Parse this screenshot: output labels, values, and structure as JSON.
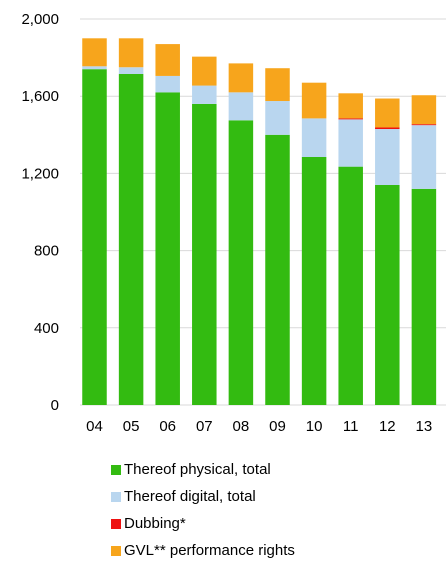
{
  "chart_data": {
    "type": "bar",
    "stacked": true,
    "categories": [
      "04",
      "05",
      "06",
      "07",
      "08",
      "09",
      "10",
      "11",
      "12",
      "13"
    ],
    "series": [
      {
        "name": "Thereof physical, total",
        "color": "#33bb11",
        "values": [
          1740,
          1715,
          1620,
          1560,
          1475,
          1400,
          1285,
          1235,
          1140,
          1120
        ]
      },
      {
        "name": "Thereof digital, total",
        "color": "#b9d6ef",
        "values": [
          15,
          35,
          85,
          95,
          145,
          175,
          200,
          245,
          290,
          330
        ]
      },
      {
        "name": "Dubbing*",
        "color": "#ee1111",
        "values": [
          0,
          0,
          0,
          0,
          0,
          0,
          0,
          5,
          8,
          5
        ]
      },
      {
        "name": "GVL** performance rights",
        "color": "#f7a51c",
        "values": [
          145,
          150,
          165,
          150,
          150,
          170,
          185,
          130,
          150,
          150
        ]
      }
    ],
    "yticks": [
      0,
      400,
      800,
      1200,
      1600,
      2000
    ],
    "ytick_labels": [
      "0",
      "400",
      "800",
      "1,200",
      "1,600",
      "2,000"
    ],
    "ylim": [
      0,
      2000
    ],
    "grid": true,
    "legend_position": "bottom",
    "title": "",
    "xlabel": "",
    "ylabel": ""
  }
}
